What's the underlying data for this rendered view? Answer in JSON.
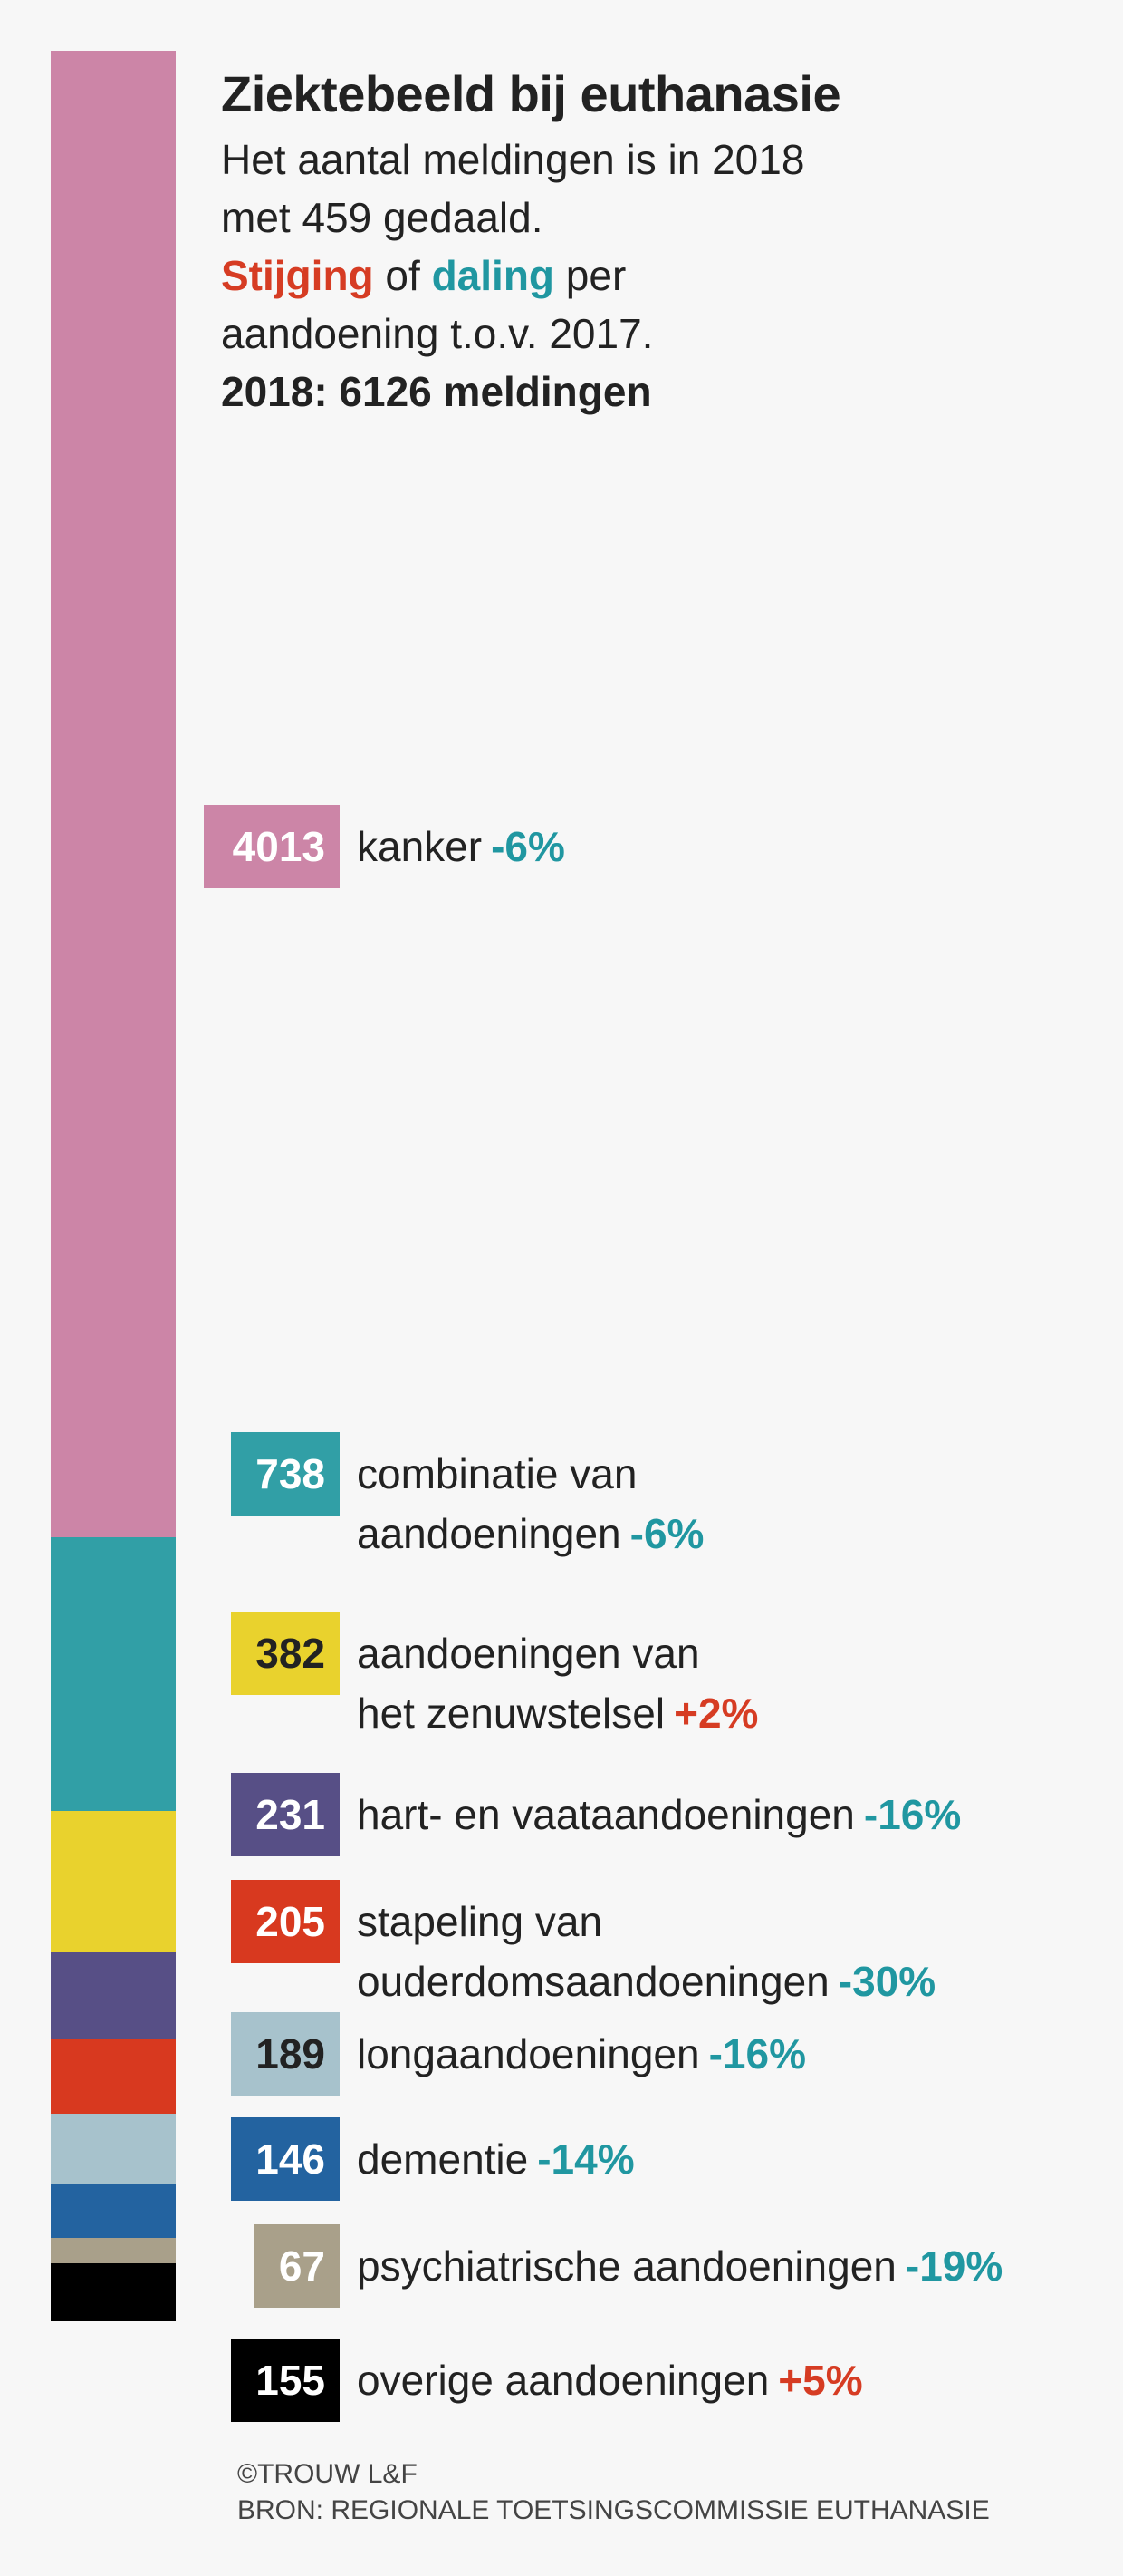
{
  "header": {
    "title": "Ziektebeeld bij euthanasie",
    "line1": "Het aantal meldingen is in 2018",
    "line2": "met 459 gedaald.",
    "stijging": "Stijging",
    "of": " of ",
    "daling": "daling",
    "per": " per",
    "line4": "aandoening t.o.v. 2017.",
    "total": "2018: 6126 meldingen"
  },
  "colors": {
    "increase": "#d63c23",
    "decrease": "#2097a1"
  },
  "chart_data": {
    "type": "bar",
    "orientation": "stacked-vertical",
    "total": 6126,
    "categories": [
      "kanker",
      "combinatie van aandoeningen",
      "aandoeningen van het zenuwstelsel",
      "hart- en vaataandoeningen",
      "stapeling van ouderdomsaandoeningen",
      "longaandoeningen",
      "dementie",
      "psychiatrische aandoeningen",
      "overige aandoeningen"
    ],
    "values": [
      4013,
      738,
      382,
      231,
      205,
      189,
      146,
      67,
      155
    ],
    "changes": [
      "-6%",
      "-6%",
      "+2%",
      "-16%",
      "-30%",
      "-16%",
      "-14%",
      "-19%",
      "+5%"
    ],
    "colors": [
      "#cc85a7",
      "#319fa6",
      "#e9d22d",
      "#574f86",
      "#d8391f",
      "#a7c2cc",
      "#2363a0",
      "#a9a08a",
      "#000000"
    ],
    "value_text_colors": [
      "#ffffff",
      "#ffffff",
      "#222222",
      "#ffffff",
      "#ffffff",
      "#222222",
      "#ffffff",
      "#ffffff",
      "#ffffff"
    ]
  },
  "items": [
    {
      "value": "4013",
      "line1": "kanker",
      "line2": "",
      "change": "-6%"
    },
    {
      "value": "738",
      "line1": "combinatie van",
      "line2": "aandoeningen",
      "change": "-6%"
    },
    {
      "value": "382",
      "line1": "aandoeningen van",
      "line2": "het zenuwstelsel",
      "change": "+2%"
    },
    {
      "value": "231",
      "line1": "hart- en vaataandoeningen",
      "line2": "",
      "change": "-16%"
    },
    {
      "value": "205",
      "line1": "stapeling van",
      "line2": "ouderdomsaandoeningen",
      "change": "-30%"
    },
    {
      "value": "189",
      "line1": "longaandoeningen",
      "line2": "",
      "change": "-16%"
    },
    {
      "value": "146",
      "line1": "dementie",
      "line2": "",
      "change": "-14%"
    },
    {
      "value": "67",
      "line1": "psychiatrische aandoeningen",
      "line2": "",
      "change": "-19%"
    },
    {
      "value": "155",
      "line1": "overige aandoeningen",
      "line2": "",
      "change": "+5%"
    }
  ],
  "footer": {
    "credit": "©TROUW L&F",
    "source": "BRON: REGIONALE TOETSINGSCOMMISSIE EUTHANASIE"
  }
}
